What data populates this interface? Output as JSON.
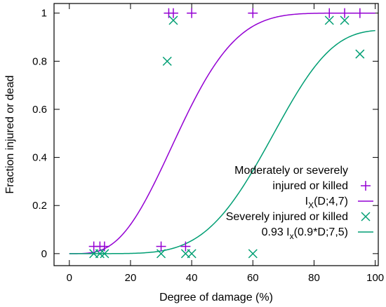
{
  "chart_data": {
    "type": "scatter",
    "xlabel": "Degree of damage (%)",
    "ylabel": "Fraction injured or dead",
    "xlim": [
      -5,
      101
    ],
    "ylim": [
      -0.05,
      1.04
    ],
    "x_ticks": [
      "0",
      "20",
      "40",
      "60",
      "80",
      "100"
    ],
    "y_ticks": [
      "0",
      "0.2",
      "0.4",
      "0.6",
      "0.8",
      "1"
    ],
    "grid": false,
    "legend_position": "bottom-right",
    "series": [
      {
        "kind": "points",
        "marker": "plus",
        "color": "#9400d3",
        "legend_lines": [
          "Moderately or severely",
          "injured or killed"
        ],
        "points": [
          {
            "x": 8,
            "y": 0.03
          },
          {
            "x": 10,
            "y": 0.03
          },
          {
            "x": 11.5,
            "y": 0.03
          },
          {
            "x": 30,
            "y": 0.03
          },
          {
            "x": 38,
            "y": 0.03
          },
          {
            "x": 32.5,
            "y": 1.0
          },
          {
            "x": 34,
            "y": 1.0
          },
          {
            "x": 40,
            "y": 1.0
          },
          {
            "x": 60,
            "y": 1.0
          },
          {
            "x": 85,
            "y": 1.0
          },
          {
            "x": 90,
            "y": 1.0
          },
          {
            "x": 95,
            "y": 1.0
          }
        ]
      },
      {
        "kind": "curve",
        "function": "incomplete_beta",
        "a": 4,
        "b": 7,
        "scale": 1.0,
        "x_factor": 1.0,
        "color": "#9400d3",
        "legend_parts": {
          "pre": "I",
          "sub": "X",
          "post": "(D;4,7)"
        }
      },
      {
        "kind": "points",
        "marker": "cross",
        "color": "#009e73",
        "legend_lines": [
          "Severely injured or killed"
        ],
        "points": [
          {
            "x": 8,
            "y": 0.0
          },
          {
            "x": 10,
            "y": 0.0
          },
          {
            "x": 11.5,
            "y": 0.0
          },
          {
            "x": 30,
            "y": 0.0
          },
          {
            "x": 38,
            "y": 0.0
          },
          {
            "x": 40,
            "y": 0.0
          },
          {
            "x": 60,
            "y": 0.0
          },
          {
            "x": 32,
            "y": 0.8
          },
          {
            "x": 34,
            "y": 0.97
          },
          {
            "x": 85,
            "y": 0.97
          },
          {
            "x": 90,
            "y": 0.97
          },
          {
            "x": 95,
            "y": 0.83
          }
        ]
      },
      {
        "kind": "curve",
        "function": "incomplete_beta",
        "a": 7,
        "b": 5,
        "scale": 0.93,
        "x_factor": 0.9,
        "color": "#009e73",
        "legend_parts": {
          "pre": "0.93 I",
          "sub": "x",
          "post": "(0.9*D;7,5)"
        }
      }
    ]
  }
}
